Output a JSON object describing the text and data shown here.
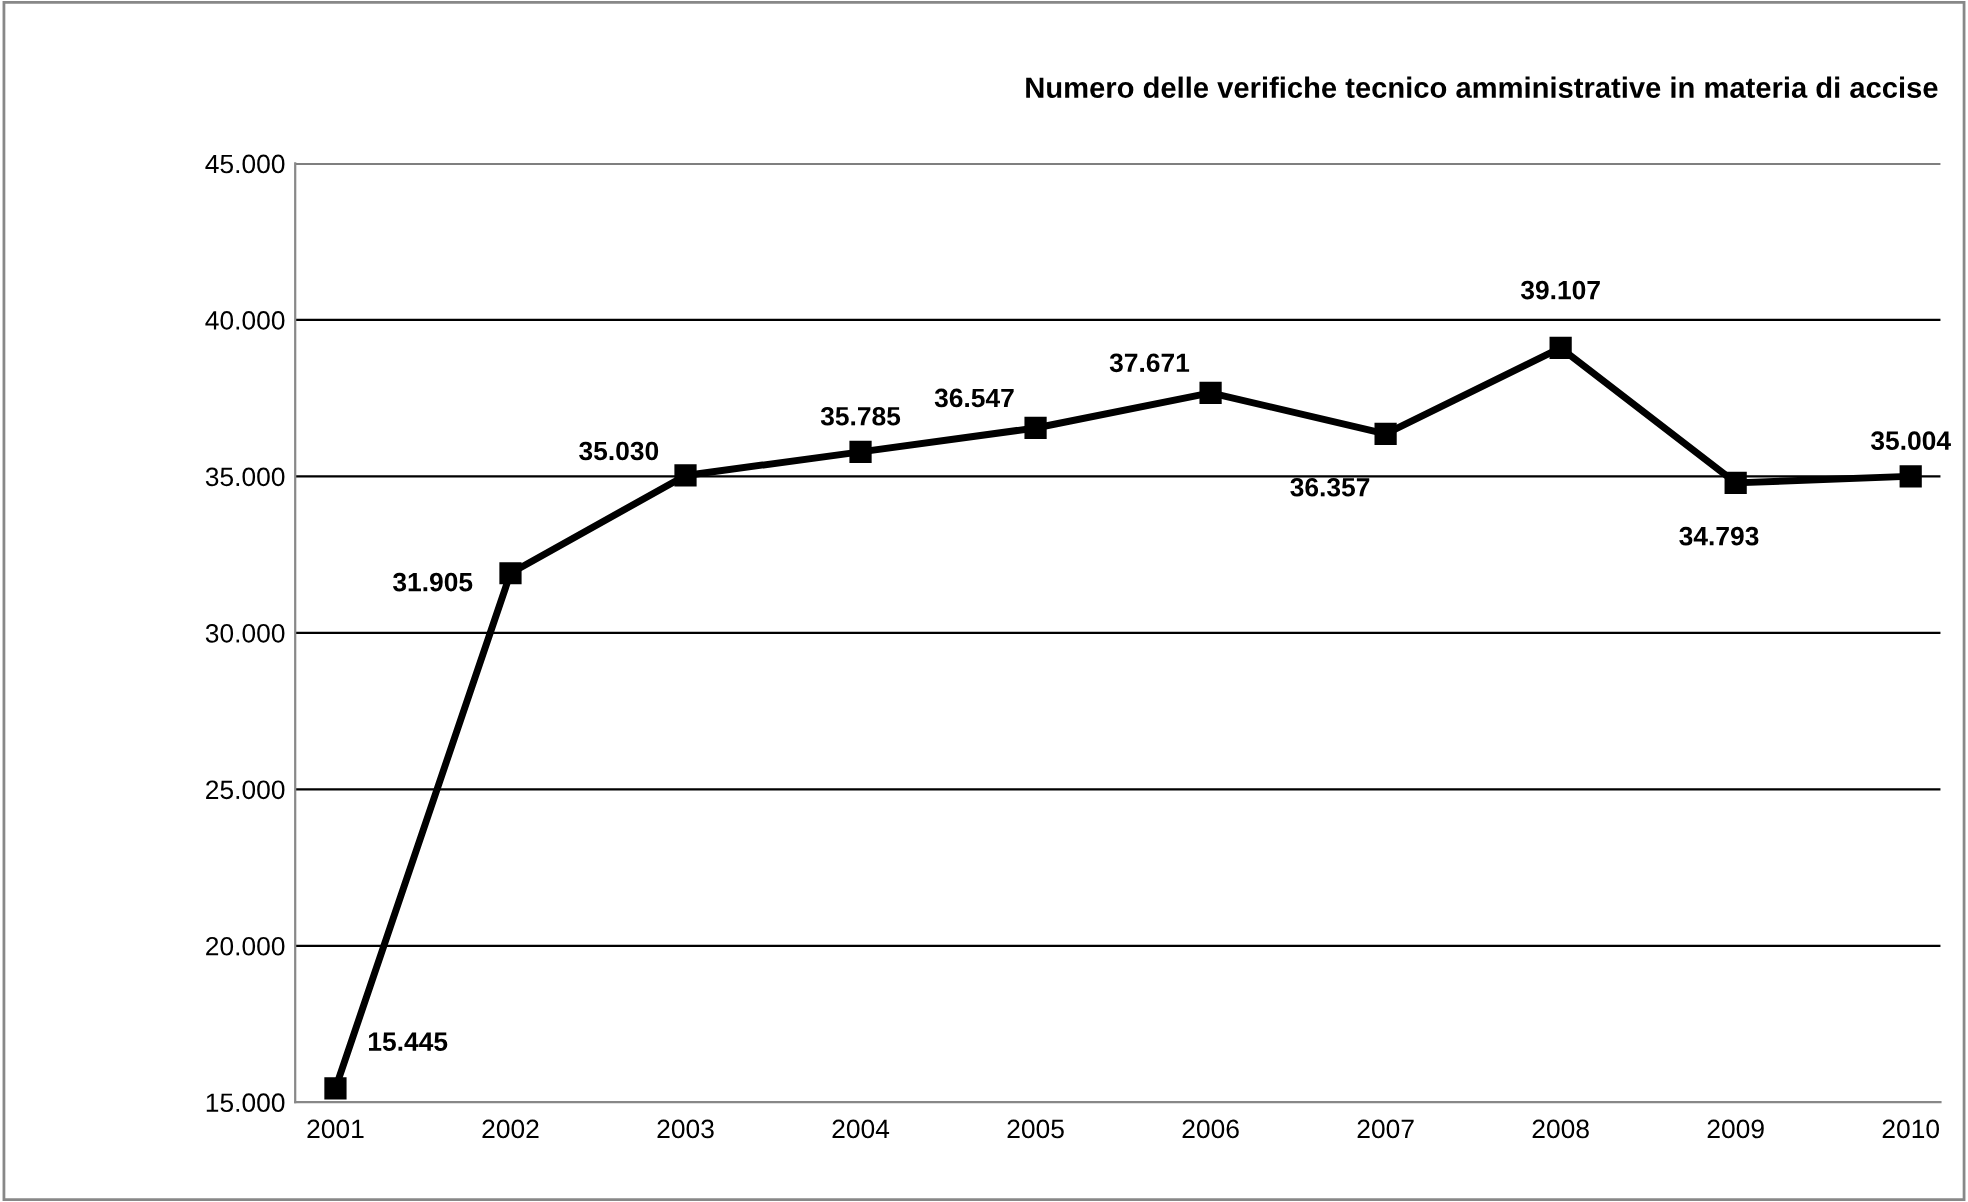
{
  "chart_data": {
    "type": "line",
    "title": "Numero delle verifiche tecnico amministrative in materia di accise",
    "categories": [
      "2001",
      "2002",
      "2003",
      "2004",
      "2005",
      "2006",
      "2007",
      "2008",
      "2009",
      "2010"
    ],
    "series": [
      {
        "color": "#000000",
        "values": [
          15445,
          31905,
          35030,
          35785,
          36547,
          37671,
          36357,
          39107,
          34793,
          35004
        ],
        "value_labels": [
          "15.445",
          "31.905",
          "35.030",
          "35.785",
          "36.547",
          "37.671",
          "36.357",
          "39.107",
          "34.793",
          "35.004"
        ]
      }
    ],
    "ylim": [
      15000,
      45000
    ],
    "yticks": [
      {
        "value": 15000,
        "label": "15.000"
      },
      {
        "value": 20000,
        "label": "20.000"
      },
      {
        "value": 25000,
        "label": "25.000"
      },
      {
        "value": 30000,
        "label": "30.000"
      },
      {
        "value": 35000,
        "label": "35.000"
      },
      {
        "value": 40000,
        "label": "40.000"
      },
      {
        "value": 45000,
        "label": "45.000"
      }
    ],
    "grid": "y",
    "marker": "square",
    "line_style": "solid",
    "legend": false
  }
}
